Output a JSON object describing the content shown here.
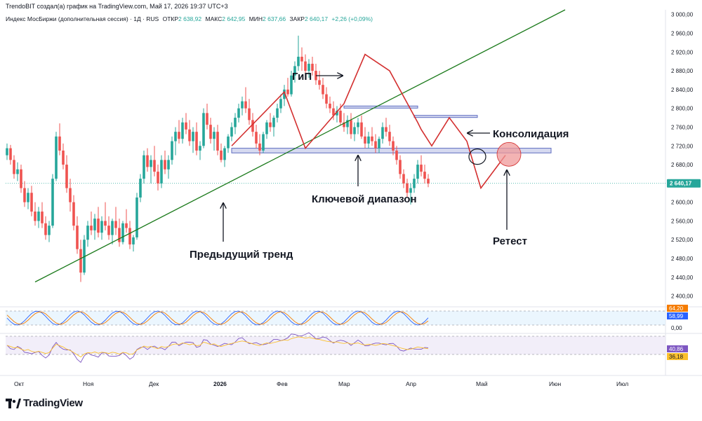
{
  "header": {
    "credit": "TrendoBIT создал(а) график на TradingView.com, Май 17, 2026 19:37 UTC+3",
    "symbol": "Индекс МосБиржи (дополнительная сессия) · 1Д · RUS",
    "open_label": "ОТКР",
    "open_value": "2 638,92",
    "high_label": "МАКС",
    "high_value": "2 642,95",
    "low_label": "МИН",
    "low_value": "2 637,66",
    "close_label": "ЗАКР",
    "close_value": "2 640,17",
    "change": "+2,26 (+0,09%)"
  },
  "brand": {
    "name": "TradingView"
  },
  "colors": {
    "up": "#26a69a",
    "down": "#ef5350",
    "trend": "#1b7a1b",
    "zone_fill": "#c5cae9",
    "zone_border": "#5c6bc0",
    "pattern": "#d32f2f",
    "price_tag": "#26a69a",
    "stoch_tag_1": "#f57c00",
    "stoch_tag_2": "#2962ff",
    "rsi_tag_1": "#7e57c2",
    "rsi_tag_2": "#fbc02d",
    "retest_fill": "#ef9a9a"
  },
  "chart_data": {
    "type": "candlestick",
    "price_axis": {
      "ticks": [
        "3 000,00",
        "2 960,00",
        "2 920,00",
        "2 880,00",
        "2 840,00",
        "2 800,00",
        "2 760,00",
        "2 720,00",
        "2 680,00",
        "2 640,00",
        "2 600,00",
        "2 560,00",
        "2 520,00",
        "2 480,00",
        "2 440,00",
        "2 400,00"
      ],
      "range": [
        2380,
        3010
      ],
      "current_price": "2 640,17"
    },
    "time_axis": {
      "labels": [
        "Окт",
        "Ноя",
        "Дек",
        "2026",
        "Фев",
        "Мар",
        "Апр",
        "Май",
        "Июн",
        "Июл"
      ]
    },
    "candles": [
      [
        2700,
        2725,
        2690,
        2715
      ],
      [
        2715,
        2722,
        2680,
        2690
      ],
      [
        2690,
        2700,
        2650,
        2660
      ],
      [
        2660,
        2685,
        2645,
        2670
      ],
      [
        2670,
        2680,
        2620,
        2630
      ],
      [
        2630,
        2645,
        2590,
        2600
      ],
      [
        2600,
        2630,
        2585,
        2620
      ],
      [
        2620,
        2635,
        2570,
        2580
      ],
      [
        2580,
        2600,
        2550,
        2560
      ],
      [
        2560,
        2590,
        2545,
        2580
      ],
      [
        2580,
        2600,
        2545,
        2555
      ],
      [
        2555,
        2570,
        2520,
        2530
      ],
      [
        2530,
        2560,
        2515,
        2550
      ],
      [
        2550,
        2660,
        2545,
        2650
      ],
      [
        2650,
        2750,
        2645,
        2740
      ],
      [
        2740,
        2768,
        2700,
        2710
      ],
      [
        2710,
        2725,
        2670,
        2680
      ],
      [
        2680,
        2700,
        2620,
        2630
      ],
      [
        2630,
        2650,
        2580,
        2600
      ],
      [
        2600,
        2615,
        2540,
        2550
      ],
      [
        2550,
        2570,
        2490,
        2500
      ],
      [
        2500,
        2520,
        2430,
        2450
      ],
      [
        2450,
        2530,
        2445,
        2520
      ],
      [
        2520,
        2560,
        2505,
        2550
      ],
      [
        2550,
        2580,
        2530,
        2540
      ],
      [
        2540,
        2575,
        2520,
        2565
      ],
      [
        2565,
        2590,
        2525,
        2535
      ],
      [
        2535,
        2570,
        2520,
        2560
      ],
      [
        2560,
        2600,
        2540,
        2550
      ],
      [
        2550,
        2570,
        2520,
        2530
      ],
      [
        2530,
        2565,
        2510,
        2560
      ],
      [
        2560,
        2590,
        2530,
        2545
      ],
      [
        2545,
        2565,
        2505,
        2515
      ],
      [
        2515,
        2560,
        2510,
        2555
      ],
      [
        2555,
        2585,
        2535,
        2545
      ],
      [
        2545,
        2560,
        2500,
        2510
      ],
      [
        2510,
        2530,
        2495,
        2525
      ],
      [
        2525,
        2620,
        2520,
        2610
      ],
      [
        2610,
        2660,
        2600,
        2650
      ],
      [
        2650,
        2710,
        2640,
        2700
      ],
      [
        2700,
        2715,
        2665,
        2675
      ],
      [
        2675,
        2700,
        2640,
        2690
      ],
      [
        2690,
        2720,
        2655,
        2665
      ],
      [
        2665,
        2680,
        2625,
        2640
      ],
      [
        2640,
        2700,
        2630,
        2690
      ],
      [
        2690,
        2710,
        2660,
        2670
      ],
      [
        2670,
        2700,
        2650,
        2690
      ],
      [
        2690,
        2740,
        2680,
        2730
      ],
      [
        2730,
        2760,
        2700,
        2750
      ],
      [
        2750,
        2775,
        2725,
        2735
      ],
      [
        2735,
        2780,
        2725,
        2770
      ],
      [
        2770,
        2790,
        2745,
        2755
      ],
      [
        2755,
        2775,
        2720,
        2730
      ],
      [
        2730,
        2760,
        2705,
        2750
      ],
      [
        2750,
        2770,
        2700,
        2710
      ],
      [
        2710,
        2730,
        2690,
        2720
      ],
      [
        2720,
        2800,
        2715,
        2790
      ],
      [
        2790,
        2810,
        2755,
        2765
      ],
      [
        2765,
        2780,
        2725,
        2735
      ],
      [
        2735,
        2760,
        2710,
        2750
      ],
      [
        2750,
        2765,
        2700,
        2710
      ],
      [
        2710,
        2725,
        2685,
        2690
      ],
      [
        2690,
        2720,
        2675,
        2715
      ],
      [
        2715,
        2745,
        2705,
        2740
      ],
      [
        2740,
        2770,
        2730,
        2760
      ],
      [
        2760,
        2790,
        2745,
        2780
      ],
      [
        2780,
        2810,
        2770,
        2800
      ],
      [
        2800,
        2825,
        2785,
        2815
      ],
      [
        2815,
        2845,
        2790,
        2800
      ],
      [
        2800,
        2820,
        2765,
        2775
      ],
      [
        2775,
        2790,
        2740,
        2750
      ],
      [
        2750,
        2765,
        2715,
        2725
      ],
      [
        2725,
        2745,
        2700,
        2710
      ],
      [
        2710,
        2750,
        2705,
        2745
      ],
      [
        2745,
        2775,
        2735,
        2770
      ],
      [
        2770,
        2790,
        2750,
        2760
      ],
      [
        2760,
        2785,
        2740,
        2780
      ],
      [
        2780,
        2810,
        2770,
        2800
      ],
      [
        2800,
        2830,
        2790,
        2820
      ],
      [
        2820,
        2850,
        2805,
        2840
      ],
      [
        2840,
        2865,
        2825,
        2830
      ],
      [
        2830,
        2880,
        2825,
        2870
      ],
      [
        2870,
        2900,
        2855,
        2890
      ],
      [
        2890,
        2955,
        2880,
        2910
      ],
      [
        2910,
        2930,
        2880,
        2900
      ],
      [
        2900,
        2915,
        2870,
        2880
      ],
      [
        2880,
        2905,
        2865,
        2895
      ],
      [
        2895,
        2910,
        2870,
        2880
      ],
      [
        2880,
        2895,
        2850,
        2860
      ],
      [
        2860,
        2880,
        2840,
        2850
      ],
      [
        2850,
        2865,
        2820,
        2830
      ],
      [
        2830,
        2845,
        2800,
        2810
      ],
      [
        2810,
        2825,
        2790,
        2800
      ],
      [
        2800,
        2815,
        2775,
        2785
      ],
      [
        2785,
        2805,
        2770,
        2795
      ],
      [
        2795,
        2810,
        2765,
        2770
      ],
      [
        2770,
        2790,
        2750,
        2760
      ],
      [
        2760,
        2785,
        2745,
        2775
      ],
      [
        2775,
        2790,
        2735,
        2745
      ],
      [
        2745,
        2770,
        2730,
        2760
      ],
      [
        2760,
        2780,
        2745,
        2770
      ],
      [
        2770,
        2785,
        2735,
        2740
      ],
      [
        2740,
        2760,
        2715,
        2725
      ],
      [
        2725,
        2750,
        2715,
        2740
      ],
      [
        2740,
        2760,
        2720,
        2730
      ],
      [
        2730,
        2745,
        2705,
        2715
      ],
      [
        2715,
        2740,
        2705,
        2735
      ],
      [
        2735,
        2770,
        2725,
        2760
      ],
      [
        2760,
        2780,
        2740,
        2750
      ],
      [
        2750,
        2765,
        2720,
        2730
      ],
      [
        2730,
        2740,
        2700,
        2710
      ],
      [
        2710,
        2720,
        2680,
        2690
      ],
      [
        2690,
        2700,
        2650,
        2660
      ],
      [
        2660,
        2670,
        2630,
        2640
      ],
      [
        2640,
        2650,
        2610,
        2620
      ],
      [
        2620,
        2640,
        2595,
        2630
      ],
      [
        2630,
        2660,
        2620,
        2650
      ],
      [
        2650,
        2690,
        2640,
        2680
      ],
      [
        2680,
        2700,
        2655,
        2665
      ],
      [
        2665,
        2680,
        2640,
        2650
      ],
      [
        2650,
        2660,
        2632,
        2640
      ]
    ],
    "trend_line": {
      "from": [
        8,
        2430
      ],
      "to": [
        159,
        3010
      ]
    },
    "zones": [
      {
        "name": "key-range",
        "x": [
          64,
          155
        ],
        "y": [
          2705,
          2715
        ]
      },
      {
        "name": "upper-level",
        "x": [
          96,
          117
        ],
        "y": [
          2801,
          2805
        ]
      },
      {
        "name": "consolidation-level",
        "x": [
          116,
          134
        ],
        "y": [
          2781,
          2785
        ]
      }
    ],
    "pattern_path": [
      [
        64,
        2720
      ],
      [
        79,
        2835
      ],
      [
        85,
        2715
      ],
      [
        96,
        2810
      ],
      [
        102,
        2915
      ],
      [
        109,
        2880
      ],
      [
        117,
        2770
      ],
      [
        118,
        2755
      ],
      [
        121,
        2720
      ],
      [
        126,
        2780
      ],
      [
        131,
        2730
      ],
      [
        135,
        2630
      ],
      [
        142,
        2700
      ]
    ],
    "annotations": [
      {
        "name": "gip",
        "text": "ГиП"
      },
      {
        "name": "consolidation",
        "text": "Консолидация"
      },
      {
        "name": "key-range",
        "text": "Ключевой диапазон"
      },
      {
        "name": "previous-trend",
        "text": "Предыдущий тренд"
      },
      {
        "name": "retest",
        "text": "Ретест"
      }
    ],
    "stochastic": {
      "ticks": [
        "0,00"
      ],
      "tag1": "64,20",
      "tag2": "58,99"
    },
    "rsi": {
      "tag1": "40,86",
      "tag2": "36,18"
    }
  }
}
